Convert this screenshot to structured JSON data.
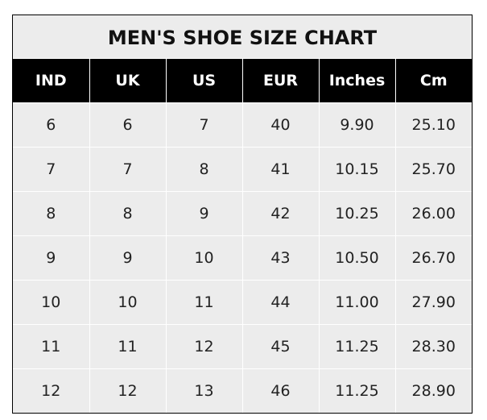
{
  "title": "MEN'S SHOE SIZE CHART",
  "headers": [
    "IND",
    "UK",
    "US",
    "EUR",
    "Inches",
    "Cm"
  ],
  "rows": [
    [
      "6",
      "6",
      "7",
      "40",
      "9.90",
      "25.10"
    ],
    [
      "7",
      "7",
      "8",
      "41",
      "10.15",
      "25.70"
    ],
    [
      "8",
      "8",
      "9",
      "42",
      "10.25",
      "26.00"
    ],
    [
      "9",
      "9",
      "10",
      "43",
      "10.50",
      "26.70"
    ],
    [
      "10",
      "10",
      "11",
      "44",
      "11.00",
      "27.90"
    ],
    [
      "11",
      "11",
      "12",
      "45",
      "11.25",
      "28.30"
    ],
    [
      "12",
      "12",
      "13",
      "46",
      "11.25",
      "28.90"
    ]
  ],
  "colors": {
    "header_bg": "#000000",
    "cell_bg": "#ececec",
    "grid": "#ffffff"
  }
}
